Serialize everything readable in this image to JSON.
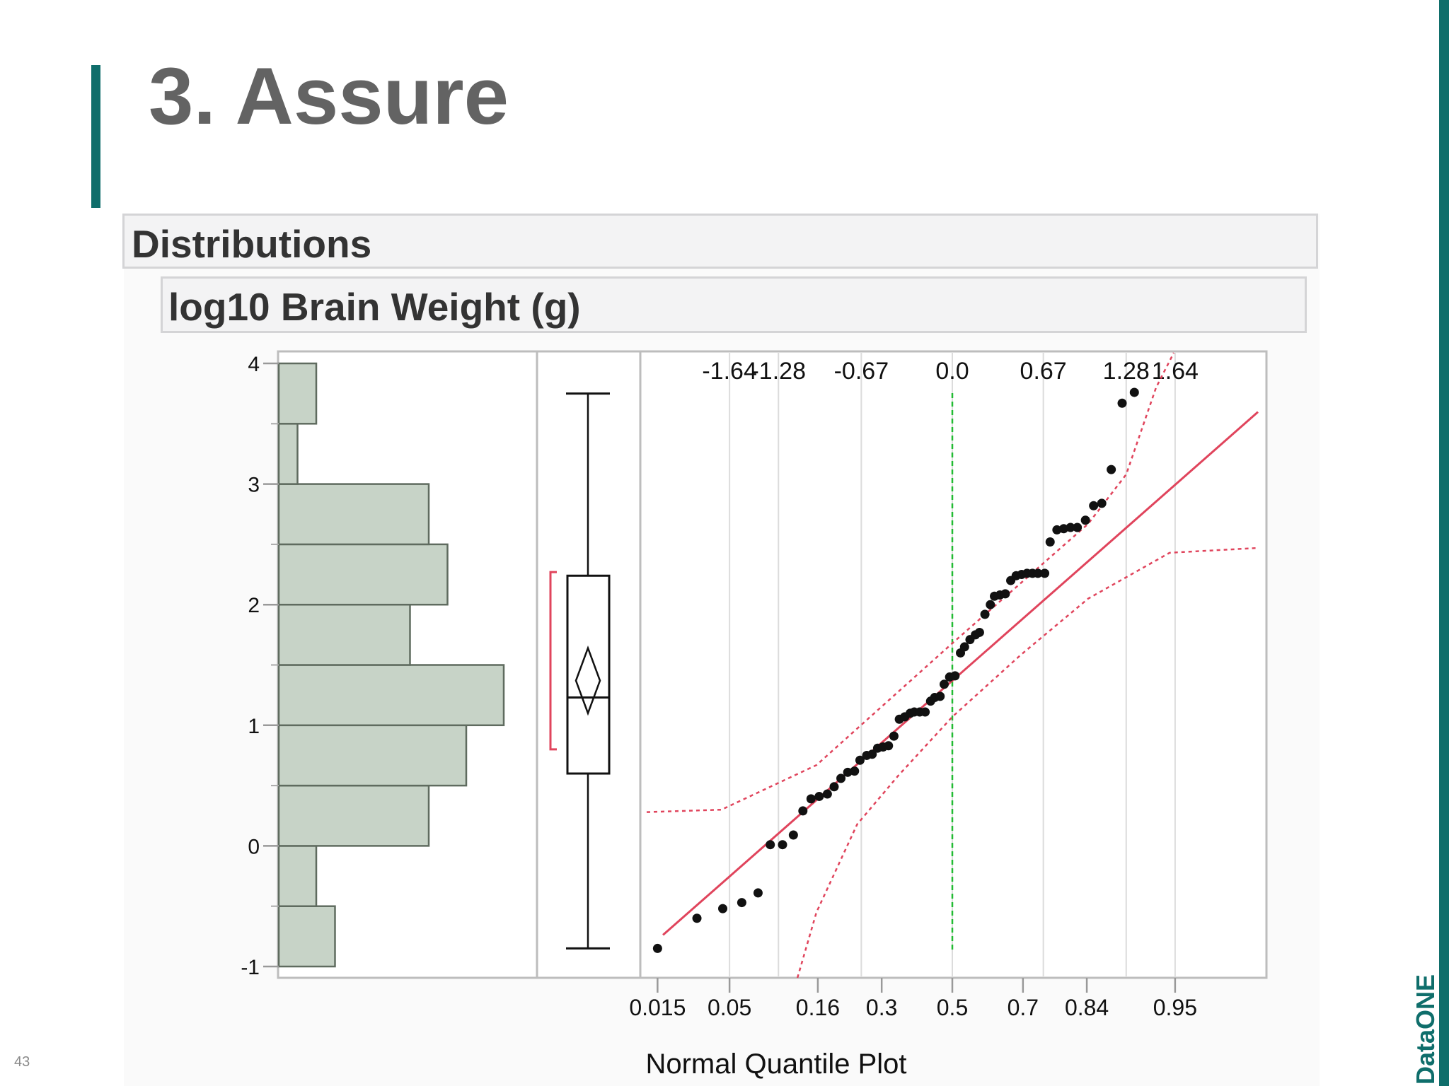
{
  "slide": {
    "title": "3. Assure",
    "page_number": "43",
    "logo_text": "DataONE",
    "colors": {
      "accent": "#0f6e6b",
      "title": "#636363",
      "bar_fill": "#c7d3c7",
      "fit_line": "#e0445c",
      "mean_line": "#22bb33"
    }
  },
  "report": {
    "section_header": "Distributions",
    "variable_header": "log10 Brain Weight (g)",
    "xaxis_title": "Normal Quantile Plot"
  },
  "chart_data": [
    {
      "type": "bar",
      "orientation": "horizontal",
      "title": "log10 Brain Weight (g)",
      "bin_edges": [
        -1,
        -0.5,
        0,
        0.5,
        1,
        1.5,
        2,
        2.5,
        3,
        3.5,
        4
      ],
      "counts": [
        3,
        2,
        8,
        10,
        12,
        7,
        9,
        8,
        1,
        2
      ],
      "ylim": [
        -1.1,
        4.1
      ],
      "ticks": [
        -1,
        0,
        1,
        2,
        3,
        4
      ],
      "tick_labels": [
        "-1",
        "0",
        "1",
        "2",
        "3",
        "4"
      ]
    },
    {
      "type": "box",
      "min": -0.85,
      "q1": 0.6,
      "median": 1.23,
      "q3": 2.24,
      "max": 3.75,
      "mean": 1.37,
      "mean_ci": [
        1.1,
        1.64
      ],
      "shortest_half": [
        0.8,
        2.27
      ]
    },
    {
      "type": "scatter",
      "title": "Normal Quantile Plot",
      "xlabel": "Normal Quantile Plot",
      "top_axis_labels": [
        "-1.64",
        "-1.28",
        "-0.67",
        "0.0",
        "0.67",
        "1.28",
        "1.64"
      ],
      "top_axis_values": [
        -1.64,
        -1.28,
        -0.67,
        0.0,
        0.67,
        1.28,
        1.64
      ],
      "bottom_axis_labels": [
        "0.015",
        "0.05",
        "0.16",
        "0.3",
        "0.5",
        "0.7",
        "0.84",
        "0.95"
      ],
      "bottom_axis_values": [
        -2.17,
        -1.64,
        -0.99,
        -0.52,
        0.0,
        0.52,
        0.99,
        1.64
      ],
      "xlim": [
        -2.25,
        2.25
      ],
      "ylim": [
        -1.1,
        4.1
      ],
      "fit_line": {
        "intercept": 1.37,
        "slope": 0.99
      },
      "confidence_band": {
        "upper": [
          [
            -2.25,
            0.28
          ],
          [
            -1.7,
            0.3
          ],
          [
            -1.0,
            0.67
          ],
          [
            0.0,
            1.68
          ],
          [
            1.0,
            2.67
          ],
          [
            1.28,
            3.08
          ],
          [
            1.5,
            3.8
          ],
          [
            1.63,
            4.1
          ]
        ],
        "lower": [
          [
            -1.14,
            -1.1
          ],
          [
            -1.0,
            -0.55
          ],
          [
            -0.7,
            0.18
          ],
          [
            -0.4,
            0.58
          ],
          [
            0.0,
            1.07
          ],
          [
            0.5,
            1.58
          ],
          [
            1.0,
            2.05
          ],
          [
            1.6,
            2.43
          ],
          [
            2.25,
            2.47
          ]
        ]
      },
      "mean_ref_x": 0.0,
      "points": [
        [
          -2.17,
          -0.85
        ],
        [
          -1.88,
          -0.6
        ],
        [
          -1.69,
          -0.52
        ],
        [
          -1.55,
          -0.47
        ],
        [
          -1.43,
          -0.39
        ],
        [
          -1.34,
          0.01
        ],
        [
          -1.25,
          0.01
        ],
        [
          -1.17,
          0.09
        ],
        [
          -1.1,
          0.29
        ],
        [
          -1.04,
          0.39
        ],
        [
          -0.98,
          0.41
        ],
        [
          -0.92,
          0.43
        ],
        [
          -0.87,
          0.49
        ],
        [
          -0.82,
          0.56
        ],
        [
          -0.77,
          0.61
        ],
        [
          -0.72,
          0.62
        ],
        [
          -0.68,
          0.71
        ],
        [
          -0.63,
          0.75
        ],
        [
          -0.59,
          0.76
        ],
        [
          -0.55,
          0.81
        ],
        [
          -0.51,
          0.82
        ],
        [
          -0.47,
          0.83
        ],
        [
          -0.43,
          0.91
        ],
        [
          -0.39,
          1.05
        ],
        [
          -0.35,
          1.07
        ],
        [
          -0.31,
          1.1
        ],
        [
          -0.28,
          1.11
        ],
        [
          -0.24,
          1.11
        ],
        [
          -0.2,
          1.11
        ],
        [
          -0.16,
          1.2
        ],
        [
          -0.13,
          1.23
        ],
        [
          -0.09,
          1.24
        ],
        [
          -0.06,
          1.34
        ],
        [
          -0.02,
          1.4
        ],
        [
          0.02,
          1.41
        ],
        [
          0.06,
          1.6
        ],
        [
          0.09,
          1.65
        ],
        [
          0.13,
          1.71
        ],
        [
          0.17,
          1.75
        ],
        [
          0.2,
          1.77
        ],
        [
          0.24,
          1.92
        ],
        [
          0.28,
          2.0
        ],
        [
          0.31,
          2.07
        ],
        [
          0.35,
          2.08
        ],
        [
          0.39,
          2.09
        ],
        [
          0.43,
          2.2
        ],
        [
          0.47,
          2.24
        ],
        [
          0.51,
          2.25
        ],
        [
          0.55,
          2.26
        ],
        [
          0.59,
          2.26
        ],
        [
          0.63,
          2.26
        ],
        [
          0.68,
          2.26
        ],
        [
          0.72,
          2.52
        ],
        [
          0.77,
          2.62
        ],
        [
          0.82,
          2.63
        ],
        [
          0.87,
          2.64
        ],
        [
          0.92,
          2.64
        ],
        [
          0.98,
          2.7
        ],
        [
          1.04,
          2.82
        ],
        [
          1.1,
          2.84
        ],
        [
          1.17,
          3.12
        ],
        [
          1.25,
          3.67
        ],
        [
          1.34,
          3.76
        ]
      ]
    }
  ]
}
